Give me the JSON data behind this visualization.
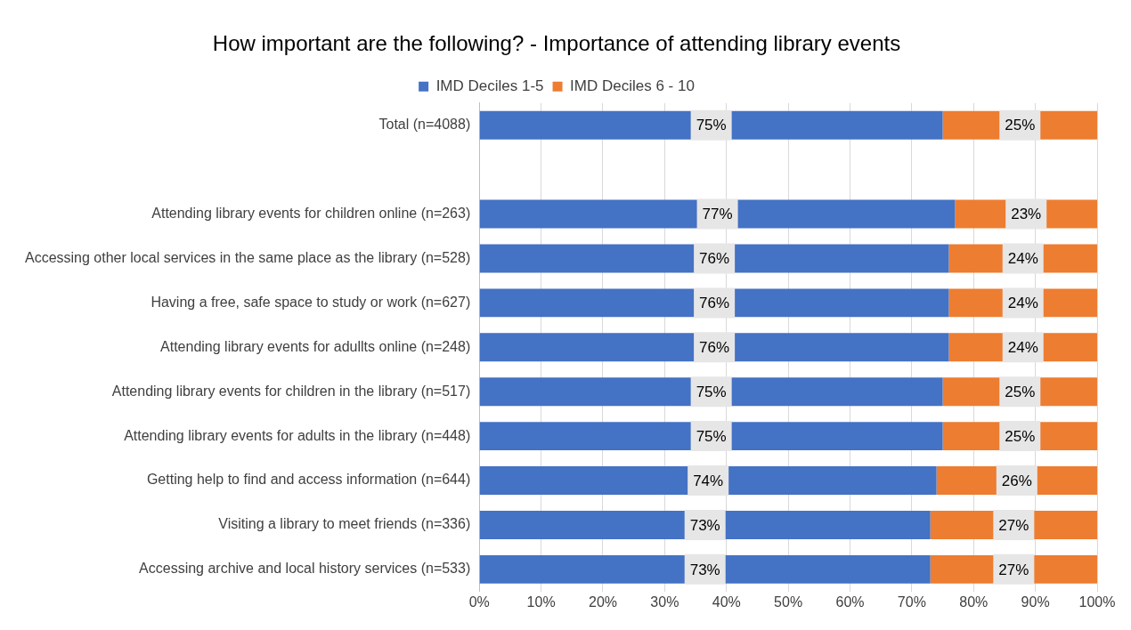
{
  "chart_data": {
    "type": "bar",
    "orientation": "horizontal",
    "stacked": true,
    "title": "How important are the following? - Importance of attending library events",
    "categories": [
      "Total (n=4088)",
      null,
      "Attending library events for children online (n=263)",
      "Accessing other local services in the same place as the library (n=528)",
      "Having a free, safe space to study or work (n=627)",
      "Attending library events for adullts online (n=248)",
      "Attending library events for children in the library (n=517)",
      "Attending library events for adults in the library (n=448)",
      "Getting help to find and access information (n=644)",
      "Visiting a library to meet friends (n=336)",
      "Accessing archive and local history services (n=533)"
    ],
    "series": [
      {
        "name": "IMD Deciles 1-5",
        "color": "#4472c4",
        "values": [
          75,
          null,
          77,
          76,
          76,
          76,
          75,
          75,
          74,
          73,
          73
        ],
        "value_labels": [
          "75%",
          null,
          "77%",
          "76%",
          "76%",
          "76%",
          "75%",
          "75%",
          "74%",
          "73%",
          "73%"
        ]
      },
      {
        "name": "IMD Deciles 6 - 10",
        "color": "#ed7d31",
        "values": [
          25,
          null,
          23,
          24,
          24,
          24,
          25,
          25,
          26,
          27,
          27
        ],
        "value_labels": [
          "25%",
          null,
          "23%",
          "24%",
          "24%",
          "24%",
          "25%",
          "25%",
          "26%",
          "27%",
          "27%"
        ]
      }
    ],
    "xlim": [
      0,
      100
    ],
    "xticks": [
      {
        "value": 0,
        "label": "0%"
      },
      {
        "value": 10,
        "label": "10%"
      },
      {
        "value": 20,
        "label": "20%"
      },
      {
        "value": 30,
        "label": "30%"
      },
      {
        "value": 40,
        "label": "40%"
      },
      {
        "value": 50,
        "label": "50%"
      },
      {
        "value": 60,
        "label": "60%"
      },
      {
        "value": 70,
        "label": "70%"
      },
      {
        "value": 80,
        "label": "80%"
      },
      {
        "value": 90,
        "label": "90%"
      },
      {
        "value": 100,
        "label": "100%"
      }
    ],
    "grid": "x",
    "legend": "top"
  }
}
